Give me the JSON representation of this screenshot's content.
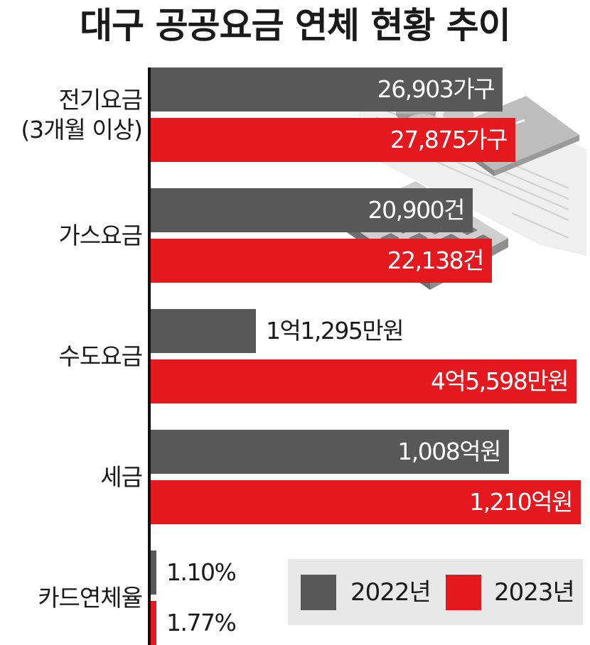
{
  "title": "대구 공공요금 연체 현황 추이",
  "colors": {
    "s2022": "#58585a",
    "s2023": "#e3191f"
  },
  "chart_data": {
    "type": "bar",
    "orientation": "horizontal",
    "title": "대구 공공요금 연체 현황 추이",
    "categories": [
      {
        "line1": "전기요금",
        "line2": "(3개월 이상)"
      },
      {
        "line1": "가스요금",
        "line2": ""
      },
      {
        "line1": "수도요금",
        "line2": ""
      },
      {
        "line1": "세금",
        "line2": ""
      },
      {
        "line1": "카드연체율",
        "line2": ""
      }
    ],
    "series": [
      {
        "name": "2022년",
        "values": [
          26903,
          20900,
          11295,
          1008,
          1.1
        ],
        "labels": [
          "26,903가구",
          "20,900건",
          "1억1,295만원",
          "1,008억원",
          "1.10%"
        ]
      },
      {
        "name": "2023년",
        "values": [
          27875,
          22138,
          45598,
          1210,
          1.77
        ],
        "labels": [
          "27,875가구",
          "22,138건",
          "4억5,598만원",
          "1,210억원",
          "1.77%"
        ]
      }
    ],
    "units": [
      "가구",
      "건",
      "만원",
      "억원",
      "%"
    ],
    "legend_position": "bottom-right",
    "grid": false
  }
}
